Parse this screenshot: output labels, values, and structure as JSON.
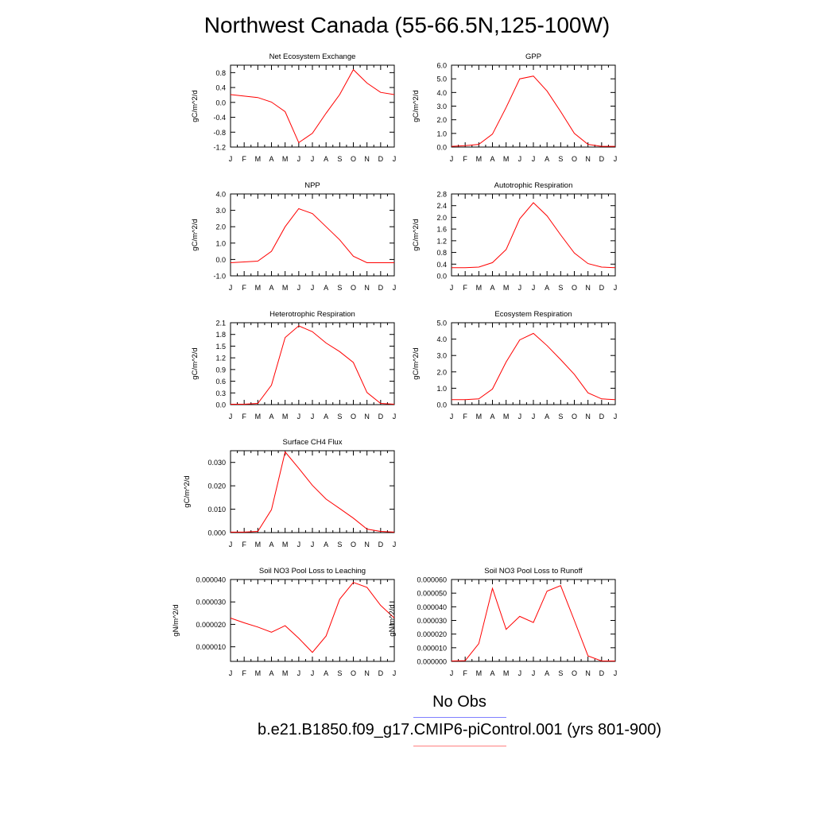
{
  "figure": {
    "title": "Northwest Canada (55-66.5N,125-100W)",
    "months": [
      "J",
      "F",
      "M",
      "A",
      "M",
      "J",
      "J",
      "A",
      "S",
      "O",
      "N",
      "D",
      "J"
    ],
    "legend": {
      "obs_label": "No Obs",
      "obs_color": "#8080ff",
      "model_label": "b.e21.B1850.f09_g17.CMIP6-piControl.001 (yrs 801-900)",
      "model_color": "#ff8080"
    },
    "line_color": "#ff0000"
  },
  "chart_data": [
    {
      "type": "line",
      "title": "Net Ecosystem Exchange",
      "ylabel": "gC/m^2/d",
      "ylim": [
        -1.2,
        1.0
      ],
      "yticks": [
        "-1.2",
        "-0.8",
        "-0.4",
        "0.0",
        "0.4",
        "0.8"
      ],
      "ytick_values": [
        -1.2,
        -0.8,
        -0.4,
        0.0,
        0.4,
        0.8
      ],
      "values": [
        0.21,
        0.17,
        0.13,
        0.01,
        -0.25,
        -1.08,
        -0.83,
        -0.29,
        0.21,
        0.88,
        0.52,
        0.27,
        0.21
      ]
    },
    {
      "type": "line",
      "title": "GPP",
      "ylabel": "gC/m^2/d",
      "ylim": [
        0.0,
        6.0
      ],
      "yticks": [
        "0.0",
        "1.0",
        "2.0",
        "3.0",
        "4.0",
        "5.0",
        "6.0"
      ],
      "ytick_values": [
        0,
        1,
        2,
        3,
        4,
        5,
        6
      ],
      "values": [
        0.05,
        0.1,
        0.2,
        0.95,
        2.9,
        5.0,
        5.2,
        4.1,
        2.6,
        1.0,
        0.2,
        0.05,
        0.05
      ]
    },
    {
      "type": "line",
      "title": "NPP",
      "ylabel": "gC/m^2/d",
      "ylim": [
        -1.0,
        4.0
      ],
      "yticks": [
        "-1.0",
        "0.0",
        "1.0",
        "2.0",
        "3.0",
        "4.0"
      ],
      "ytick_values": [
        -1,
        0,
        1,
        2,
        3,
        4
      ],
      "values": [
        -0.2,
        -0.15,
        -0.1,
        0.5,
        2.0,
        3.1,
        2.8,
        2.0,
        1.2,
        0.2,
        -0.2,
        -0.2,
        -0.2
      ]
    },
    {
      "type": "line",
      "title": "Autotrophic Respiration",
      "ylabel": "gC/m^2/d",
      "ylim": [
        0.0,
        2.8
      ],
      "yticks": [
        "0.0",
        "0.4",
        "0.8",
        "1.2",
        "1.6",
        "2.0",
        "2.4",
        "2.8"
      ],
      "ytick_values": [
        0,
        0.4,
        0.8,
        1.2,
        1.6,
        2.0,
        2.4,
        2.8
      ],
      "values": [
        0.28,
        0.28,
        0.3,
        0.45,
        0.9,
        1.95,
        2.5,
        2.05,
        1.4,
        0.78,
        0.42,
        0.3,
        0.28
      ]
    },
    {
      "type": "line",
      "title": "Heterotrophic Respiration",
      "ylabel": "gC/m^2/d",
      "ylim": [
        0.0,
        2.1
      ],
      "yticks": [
        "0.0",
        "0.3",
        "0.6",
        "0.9",
        "1.2",
        "1.5",
        "1.8",
        "2.1"
      ],
      "ytick_values": [
        0,
        0.3,
        0.6,
        0.9,
        1.2,
        1.5,
        1.8,
        2.1
      ],
      "values": [
        0.01,
        0.01,
        0.03,
        0.5,
        1.72,
        2.02,
        1.87,
        1.58,
        1.36,
        1.08,
        0.31,
        0.03,
        0.01
      ]
    },
    {
      "type": "line",
      "title": "Ecosystem Respiration",
      "ylabel": "gC/m^2/d",
      "ylim": [
        0.0,
        5.0
      ],
      "yticks": [
        "0.0",
        "1.0",
        "2.0",
        "3.0",
        "4.0",
        "5.0"
      ],
      "ytick_values": [
        0,
        1,
        2,
        3,
        4,
        5
      ],
      "values": [
        0.3,
        0.3,
        0.35,
        0.95,
        2.6,
        3.95,
        4.35,
        3.6,
        2.75,
        1.85,
        0.72,
        0.35,
        0.3
      ]
    },
    {
      "type": "line",
      "title": "Surface CH4 Flux",
      "ylabel": "gC/m^2/d",
      "ylim": [
        0.0,
        0.035
      ],
      "yticks": [
        "0.000",
        "0.010",
        "0.020",
        "0.030"
      ],
      "ytick_values": [
        0,
        0.01,
        0.02,
        0.03
      ],
      "values": [
        0.0002,
        0.0002,
        0.0005,
        0.0098,
        0.0345,
        0.0275,
        0.0202,
        0.0143,
        0.0103,
        0.0062,
        0.0015,
        0.0005,
        0.0002
      ]
    },
    {
      "type": "line",
      "title": "Soil NO3 Pool Loss to Leaching",
      "ylabel": "gN/m^2/d",
      "ylim": [
        3.5e-06,
        4e-05
      ],
      "yticks": [
        "0.000010",
        "0.000020",
        "0.000030",
        "0.000040"
      ],
      "ytick_values": [
        1e-05,
        2e-05,
        3e-05,
        4e-05
      ],
      "values": [
        2.28e-05,
        2.07e-05,
        1.88e-05,
        1.65e-05,
        1.94e-05,
        1.38e-05,
        7.5e-06,
        1.48e-05,
        3.12e-05,
        3.87e-05,
        3.65e-05,
        2.85e-05,
        2.28e-05
      ]
    },
    {
      "type": "line",
      "title": "Soil NO3 Pool Loss to Runoff",
      "ylabel": "gN/m^2/d",
      "ylim": [
        0.0,
        6e-05
      ],
      "yticks": [
        "0.000000",
        "0.000010",
        "0.000020",
        "0.000030",
        "0.000040",
        "0.000050",
        "0.000060"
      ],
      "ytick_values": [
        0,
        1e-05,
        2e-05,
        3e-05,
        4e-05,
        5e-05,
        6e-05
      ],
      "values": [
        3e-07,
        5e-07,
        1.3e-05,
        5.35e-05,
        2.35e-05,
        3.3e-05,
        2.85e-05,
        5.15e-05,
        5.55e-05,
        3e-05,
        4e-06,
        3e-07,
        3e-07
      ]
    }
  ]
}
